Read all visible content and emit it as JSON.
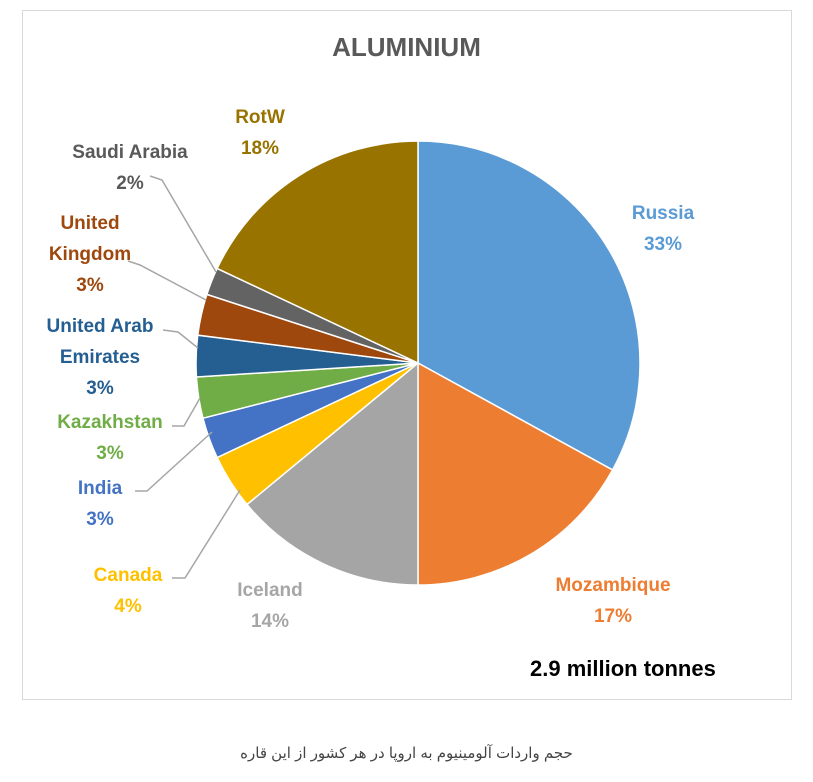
{
  "chart_data": {
    "type": "pie",
    "title": "ALUMINIUM",
    "subtitle": "2.9 million tonnes",
    "caption": "حجم واردات آلومینیوم به اروپا در هر کشور از این قاره",
    "categories": [
      "Russia",
      "Mozambique",
      "Iceland",
      "Canada",
      "India",
      "Kazakhstan",
      "United Arab Emirates",
      "United Kingdom",
      "Saudi Arabia",
      "RotW"
    ],
    "values": [
      33,
      17,
      14,
      4,
      3,
      3,
      3,
      3,
      2,
      18
    ],
    "value_labels": [
      "33%",
      "17%",
      "14%",
      "4%",
      "3%",
      "3%",
      "3%",
      "3%",
      "2%",
      "18%"
    ],
    "colors": [
      "#5b9bd5",
      "#ed7d31",
      "#a5a5a5",
      "#ffc000",
      "#4472c4",
      "#70ad47",
      "#255e91",
      "#9e480e",
      "#636363",
      "#997300"
    ]
  }
}
